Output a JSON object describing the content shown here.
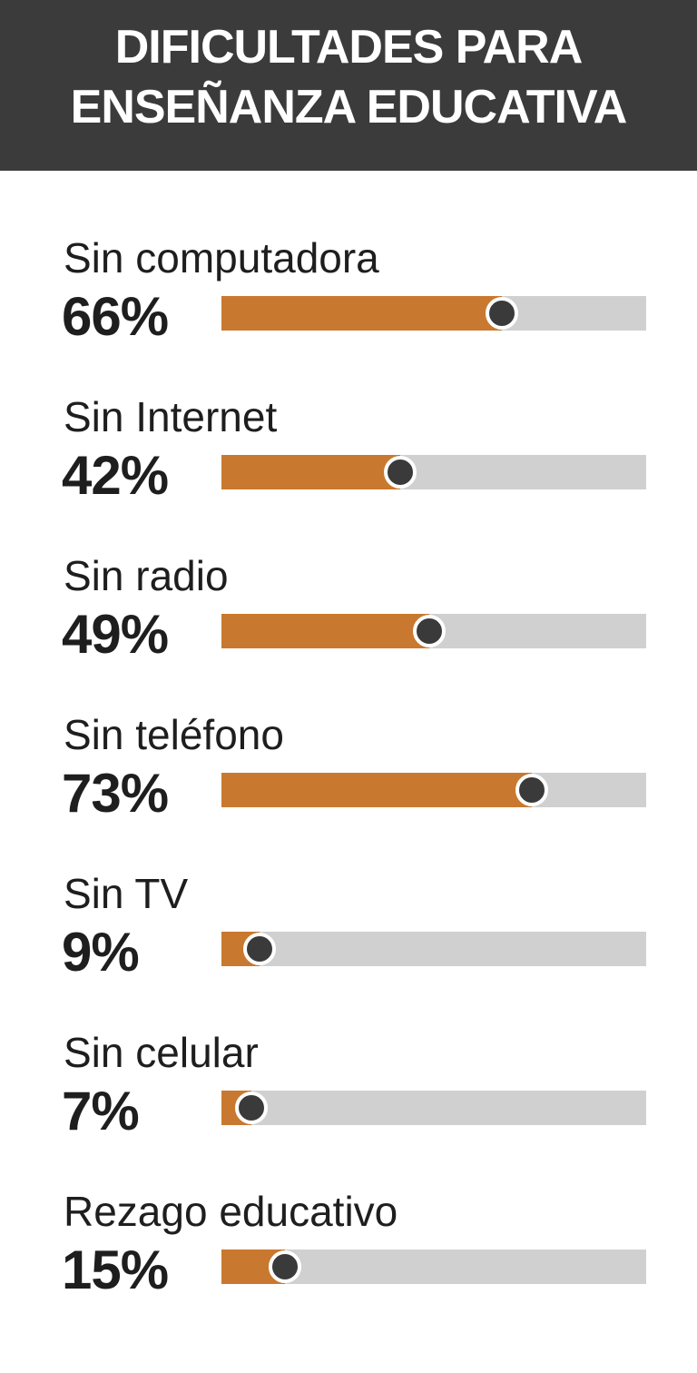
{
  "header": {
    "title_line1": "DIFICULTADES PARA",
    "title_line2": "ENSEÑANZA EDUCATIVA"
  },
  "colors": {
    "header_bg": "#3b3b3b",
    "fill": "#c9792f",
    "track": "#d0d0d0",
    "knob": "#3a3a3a"
  },
  "chart_data": {
    "type": "bar",
    "orientation": "horizontal",
    "title": "DIFICULTADES PARA ENSEÑANZA EDUCATIVA",
    "xlim": [
      0,
      100
    ],
    "grid": false,
    "categories": [
      "Sin computadora",
      "Sin Internet",
      "Sin radio",
      "Sin teléfono",
      "Sin TV",
      "Sin celular",
      "Rezago educativo"
    ],
    "values": [
      66,
      42,
      49,
      73,
      9,
      7,
      15
    ],
    "value_labels": [
      "66%",
      "42%",
      "49%",
      "73%",
      "9%",
      "7%",
      "15%"
    ]
  }
}
